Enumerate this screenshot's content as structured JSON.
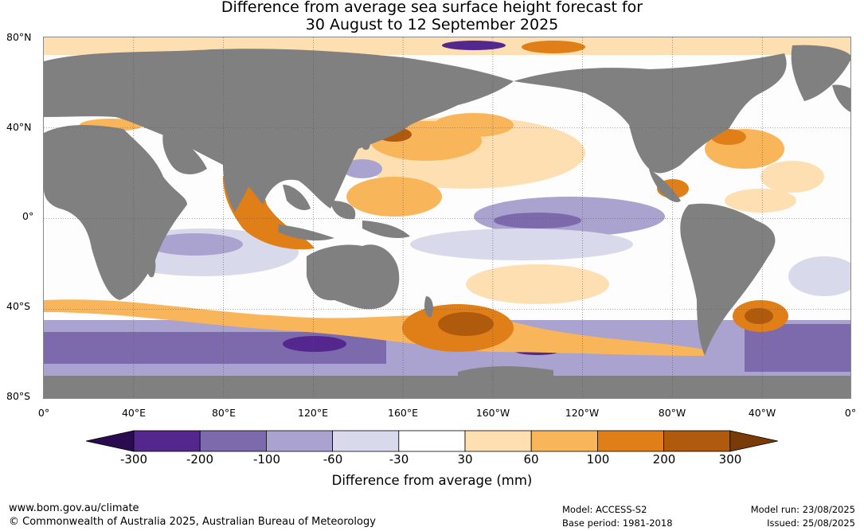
{
  "title": {
    "line1": "Difference from average sea surface height forecast for",
    "line2": "30 August to 12 September 2025"
  },
  "map": {
    "lat_labels": [
      "80°N",
      "40°N",
      "0°",
      "40°S",
      "80°S"
    ],
    "lon_labels": [
      "0°",
      "40°E",
      "80°E",
      "120°E",
      "160°E",
      "160°W",
      "120°W",
      "80°W",
      "40°W",
      "0°"
    ],
    "land_color": "#808080",
    "grid_color": "#555555"
  },
  "colorbar": {
    "title": "Difference from average (mm)",
    "ticks": [
      "-300",
      "-200",
      "-100",
      "-60",
      "-30",
      "30",
      "60",
      "100",
      "200",
      "300"
    ],
    "colors": [
      "#2a0b4f",
      "#54278f",
      "#7c6aac",
      "#aaa3cf",
      "#d9d9ec",
      "#ffffff",
      "#fddfb2",
      "#f9b55a",
      "#e07f17",
      "#b05a0e",
      "#7a3b08"
    ]
  },
  "footer": {
    "url": "www.bom.gov.au/climate",
    "copyright": "© Commonwealth of Australia 2025, Australian Bureau of Meteorology",
    "model": "Model: ACCESS-S2",
    "base_period": "Base period: 1981-2018",
    "model_run": "Model run: 23/08/2025",
    "issued": "Issued: 25/08/2025"
  }
}
